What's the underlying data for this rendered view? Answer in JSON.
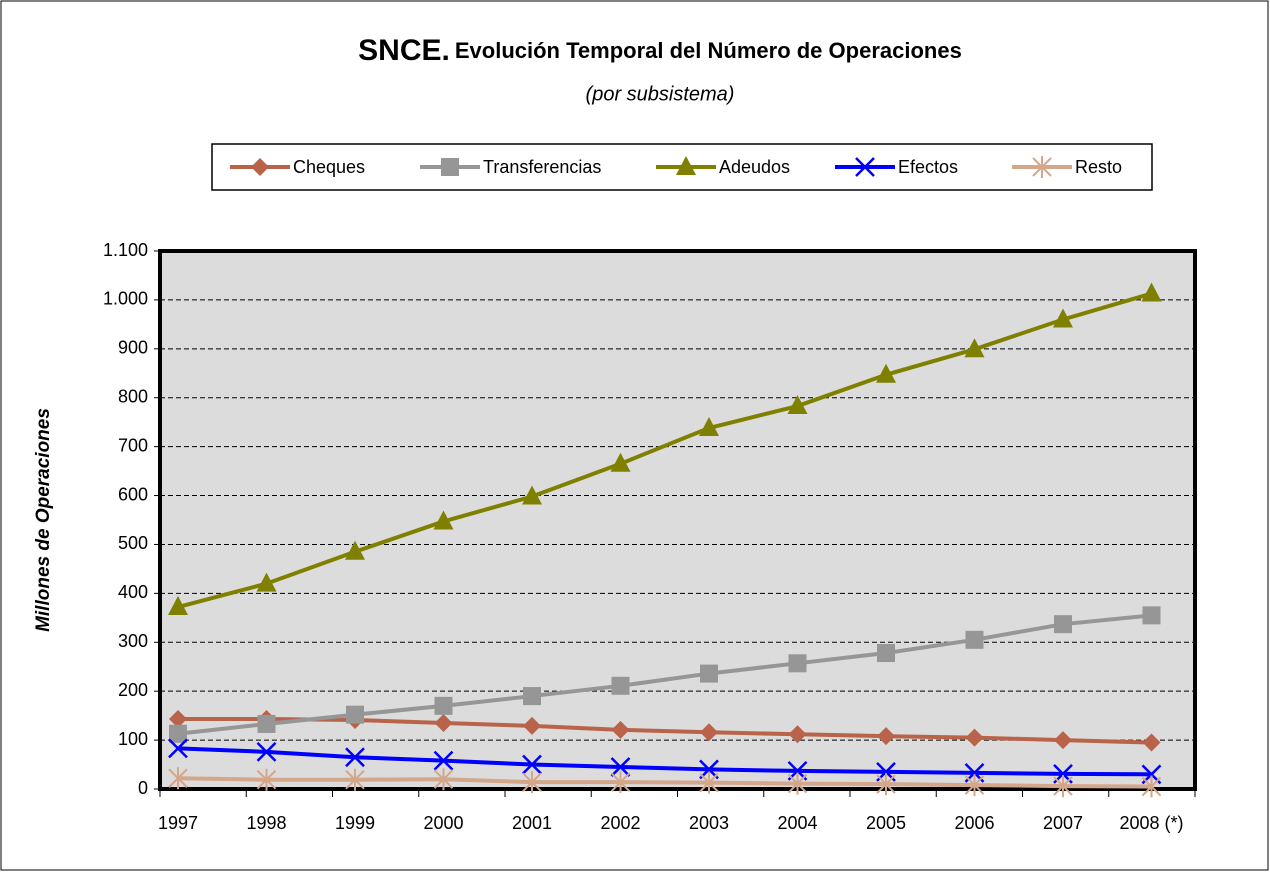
{
  "chart_data": {
    "type": "line",
    "title": [
      "SNCE.",
      "Evolución Temporal del Número de Operaciones"
    ],
    "subtitle": "(por subsistema)",
    "y_label": "Millones de Operaciones",
    "categories": [
      "1997",
      "1998",
      "1999",
      "2000",
      "2001",
      "2002",
      "2003",
      "2004",
      "2005",
      "2006",
      "2007",
      "2008 (*)"
    ],
    "series": [
      {
        "name": "Cheques",
        "color": "#b9634a",
        "marker": "diamond",
        "values": [
          143,
          143,
          141,
          135,
          129,
          121,
          116,
          112,
          108,
          105,
          100,
          95
        ]
      },
      {
        "name": "Transferencias",
        "color": "#969696",
        "marker": "square",
        "values": [
          113,
          133,
          152,
          170,
          190,
          211,
          236,
          257,
          278,
          305,
          337,
          355
        ]
      },
      {
        "name": "Adeudos",
        "color": "#808000",
        "marker": "triangle",
        "values": [
          372,
          420,
          485,
          547,
          598,
          665,
          738,
          783,
          847,
          899,
          960,
          1013
        ]
      },
      {
        "name": "Efectos",
        "color": "#0000ff",
        "marker": "x",
        "values": [
          83,
          76,
          65,
          58,
          50,
          45,
          40,
          37,
          35,
          33,
          31,
          30
        ]
      },
      {
        "name": "Resto",
        "color": "#d4a68a",
        "marker": "star",
        "values": [
          22,
          19,
          19,
          20,
          14,
          14,
          13,
          11,
          10,
          8,
          6,
          5
        ]
      }
    ],
    "ylim": [
      0,
      1100
    ],
    "yticks": [
      0,
      100,
      200,
      300,
      400,
      500,
      600,
      700,
      800,
      900,
      {
        "value": 1000,
        "label": "1.000"
      },
      {
        "value": 1100,
        "label": "1.100"
      }
    ],
    "grid": true,
    "legend": "top"
  }
}
